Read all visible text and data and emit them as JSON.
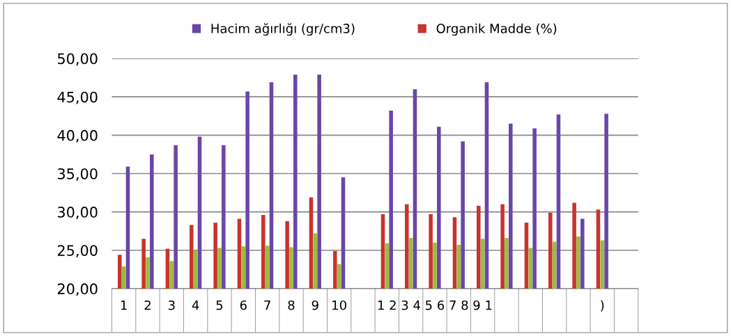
{
  "chart_data": {
    "type": "bar",
    "categories": [
      "1",
      "2",
      "3",
      "4",
      "5",
      "6",
      "7",
      "8",
      "9",
      "10",
      null,
      "1 2",
      "3 4",
      "5 6",
      "7 8",
      "9 1",
      null,
      null,
      null,
      null,
      ")",
      null
    ],
    "series": [
      {
        "name": "Organik Madde (%)",
        "color": "#c8342e",
        "values": [
          24.4,
          26.5,
          25.2,
          28.3,
          28.6,
          29.1,
          29.6,
          28.8,
          31.9,
          24.9,
          null,
          29.7,
          31.0,
          29.7,
          29.3,
          30.8,
          31.0,
          28.6,
          29.9,
          31.2,
          30.3,
          null
        ]
      },
      {
        "color": "#9bbb3c",
        "values": [
          22.9,
          24.1,
          23.6,
          25.0,
          25.3,
          25.5,
          25.6,
          25.4,
          27.2,
          23.2,
          null,
          25.9,
          26.6,
          26.0,
          25.7,
          26.5,
          26.6,
          25.3,
          26.1,
          26.8,
          26.3,
          null
        ]
      },
      {
        "name": "Hacim ağırlığı (gr/cm3)",
        "color": "#6a46a8",
        "values": [
          35.9,
          37.5,
          38.7,
          39.8,
          38.7,
          45.7,
          46.9,
          47.9,
          47.9,
          34.5,
          null,
          43.2,
          46.0,
          41.1,
          39.2,
          46.9,
          41.5,
          40.9,
          42.7,
          29.1,
          42.8,
          null
        ]
      }
    ],
    "ylim": [
      20,
      50
    ],
    "yticks": [
      {
        "value": 20,
        "label": "20,00"
      },
      {
        "value": 25,
        "label": "25,00"
      },
      {
        "value": 30,
        "label": "30,00"
      },
      {
        "value": 35,
        "label": "35,00"
      },
      {
        "value": 40,
        "label": "40,00"
      },
      {
        "value": 45,
        "label": "45,00"
      },
      {
        "value": 50,
        "label": "50,00"
      }
    ],
    "grid": "y",
    "legend": "top"
  }
}
